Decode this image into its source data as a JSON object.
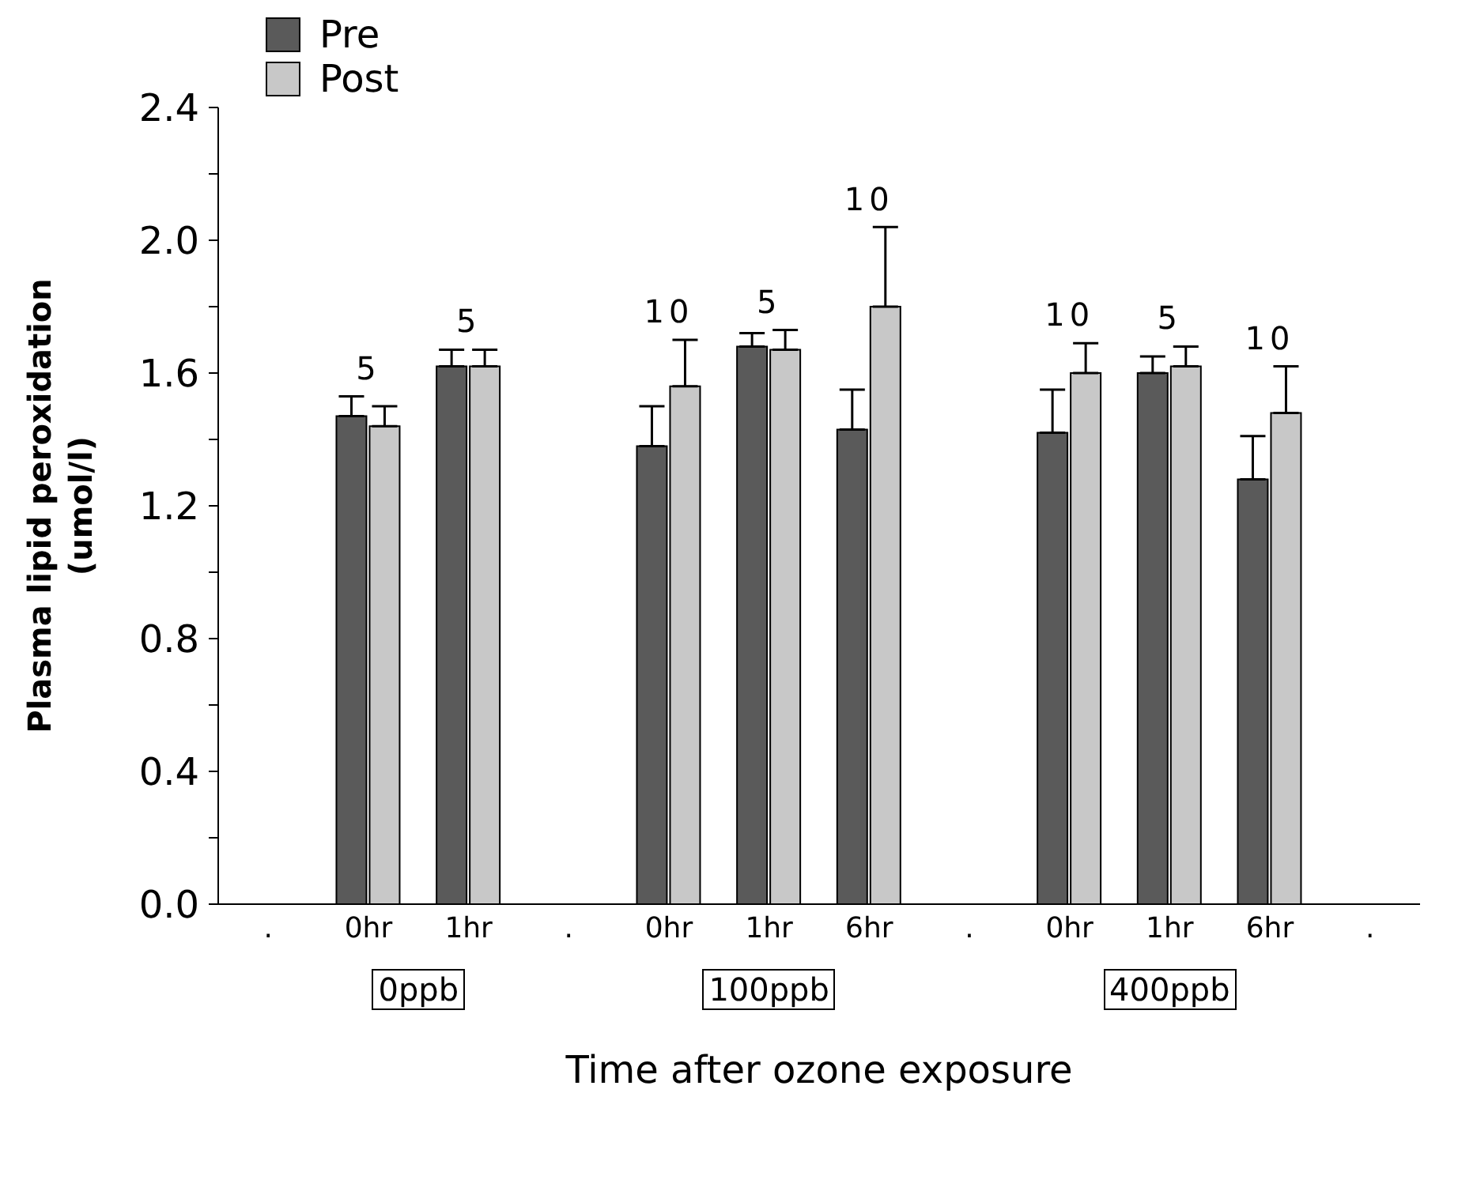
{
  "chart_data": {
    "type": "bar",
    "xlabel": "Time after ozone exposure",
    "ylabel": "Plasma lipid peroxidation\n(umol/l)",
    "categories": [
      ".",
      "0hr",
      "1hr",
      ".",
      "0hr",
      "1hr",
      "6hr",
      ".",
      "0hr",
      "1hr",
      "6hr",
      "."
    ],
    "series": [
      {
        "name": "Pre",
        "color": "#5a5a5a",
        "values": [
          null,
          1.47,
          1.62,
          null,
          1.38,
          1.68,
          1.43,
          null,
          1.42,
          1.6,
          1.28,
          null
        ],
        "errors": [
          null,
          [
            1.47,
            1.53
          ],
          [
            1.62,
            1.67
          ],
          null,
          [
            1.38,
            1.5
          ],
          [
            1.68,
            1.72
          ],
          [
            1.43,
            1.55
          ],
          null,
          [
            1.42,
            1.55
          ],
          [
            1.6,
            1.65
          ],
          [
            1.28,
            1.41
          ],
          null
        ]
      },
      {
        "name": "Post",
        "color": "#c8c8c8",
        "values": [
          null,
          1.44,
          1.62,
          null,
          1.56,
          1.67,
          1.8,
          null,
          1.6,
          1.62,
          1.48,
          null
        ],
        "errors": [
          null,
          [
            1.44,
            1.5
          ],
          [
            1.62,
            1.67
          ],
          null,
          [
            1.56,
            1.7
          ],
          [
            1.67,
            1.73
          ],
          [
            1.8,
            2.04
          ],
          null,
          [
            1.6,
            1.69
          ],
          [
            1.62,
            1.68
          ],
          [
            1.48,
            1.62
          ],
          null
        ]
      }
    ],
    "ylim": [
      0,
      2.4
    ],
    "yticks": [
      {
        "value": 0,
        "label": "0.0"
      },
      {
        "value": 0.2,
        "label": null
      },
      {
        "value": 0.4,
        "label": "0.4"
      },
      {
        "value": 0.6,
        "label": null
      },
      {
        "value": 0.8,
        "label": "0.8"
      },
      {
        "value": 1.0,
        "label": null
      },
      {
        "value": 1.2,
        "label": "1.2"
      },
      {
        "value": 1.4,
        "label": null
      },
      {
        "value": 1.6,
        "label": "1.6"
      },
      {
        "value": 1.8,
        "label": null
      },
      {
        "value": 2.0,
        "label": "2.0"
      },
      {
        "value": 2.2,
        "label": null
      },
      {
        "value": 2.4,
        "label": "2.4"
      }
    ],
    "grid": false,
    "legend": "top left",
    "annotations": [
      "5",
      "5",
      "10",
      "5",
      "10",
      "10",
      "5",
      "10",
      "0ppb",
      "100ppb",
      "400ppb"
    ]
  }
}
